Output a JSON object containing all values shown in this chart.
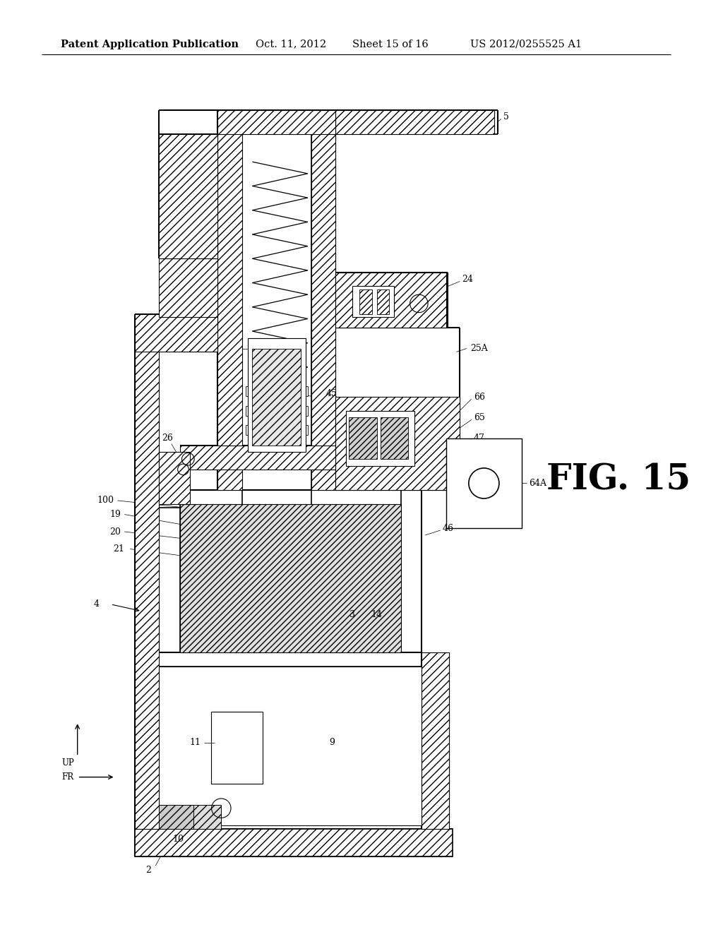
{
  "background_color": "#ffffff",
  "header_left": "Patent Application Publication",
  "header_date": "Oct. 11, 2012",
  "header_sheet": "Sheet 15 of 16",
  "header_patent": "US 2012/0255525 A1",
  "fig_label": "FIG. 15",
  "line_color": "#000000"
}
